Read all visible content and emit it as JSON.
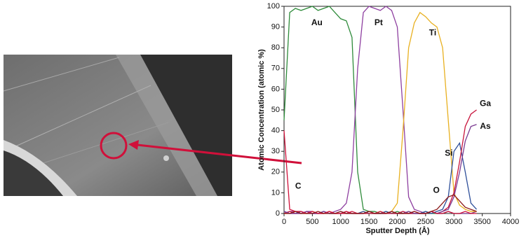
{
  "chart_data": {
    "type": "line",
    "x_label": "Sputter Depth (Å)",
    "y_label": "Atomic Concentration (atomic %)",
    "xlim": [
      0,
      4000
    ],
    "xticks": [
      0,
      500,
      1000,
      1500,
      2000,
      2500,
      3000,
      3500,
      4000
    ],
    "ylim": [
      0,
      100
    ],
    "yticks": [
      0,
      10,
      20,
      30,
      40,
      50,
      60,
      70,
      80,
      90,
      100
    ],
    "x": [
      0,
      100,
      200,
      300,
      400,
      500,
      600,
      700,
      800,
      900,
      1000,
      1100,
      1200,
      1300,
      1400,
      1500,
      1600,
      1700,
      1800,
      1900,
      2000,
      2100,
      2200,
      2300,
      2400,
      2500,
      2600,
      2700,
      2800,
      2900,
      3000,
      3100,
      3200,
      3300,
      3400
    ],
    "series": [
      {
        "name": "Au",
        "color": "#2e8b3a",
        "values": [
          45,
          97,
          99,
          98,
          99,
          100,
          98,
          99,
          100,
          97,
          94,
          93,
          85,
          20,
          2,
          1,
          1,
          0,
          1,
          0,
          1,
          0,
          1,
          0,
          0,
          1,
          0,
          0,
          0,
          1,
          0,
          0,
          0,
          0,
          1
        ]
      },
      {
        "name": "Pt",
        "color": "#8e3fa0",
        "values": [
          0,
          1,
          1,
          0,
          1,
          1,
          0,
          1,
          0,
          1,
          2,
          5,
          20,
          70,
          97,
          100,
          99,
          98,
          100,
          98,
          90,
          50,
          8,
          2,
          1,
          0,
          1,
          0,
          0,
          1,
          0,
          0,
          0,
          0,
          1
        ]
      },
      {
        "name": "Ti",
        "color": "#e8b020",
        "values": [
          0,
          0,
          1,
          0,
          0,
          1,
          0,
          0,
          1,
          0,
          0,
          1,
          0,
          0,
          1,
          0,
          0,
          1,
          0,
          1,
          5,
          40,
          80,
          92,
          97,
          95,
          92,
          90,
          80,
          45,
          10,
          4,
          2,
          1,
          1
        ]
      },
      {
        "name": "Si",
        "color": "#2e4f9a",
        "values": [
          1,
          0,
          0,
          1,
          0,
          0,
          0,
          1,
          0,
          0,
          1,
          0,
          0,
          0,
          1,
          0,
          0,
          0,
          1,
          0,
          0,
          1,
          0,
          0,
          0,
          1,
          0,
          1,
          2,
          8,
          30,
          34,
          20,
          5,
          2
        ]
      },
      {
        "name": "Ga",
        "color": "#c8143c",
        "values": [
          0,
          1,
          0,
          0,
          1,
          0,
          0,
          0,
          1,
          0,
          0,
          0,
          1,
          0,
          0,
          0,
          0,
          1,
          0,
          0,
          0,
          1,
          0,
          0,
          0,
          0,
          1,
          0,
          1,
          3,
          10,
          25,
          42,
          48,
          50
        ]
      },
      {
        "name": "As",
        "color": "#7a3a90",
        "values": [
          1,
          0,
          0,
          0,
          1,
          0,
          0,
          1,
          0,
          0,
          0,
          1,
          0,
          0,
          0,
          1,
          0,
          0,
          0,
          1,
          0,
          0,
          1,
          0,
          0,
          0,
          1,
          0,
          1,
          2,
          8,
          20,
          35,
          42,
          43
        ]
      },
      {
        "name": "C",
        "color": "#d0103a",
        "values": [
          40,
          2,
          1,
          1,
          0,
          1,
          0,
          0,
          1,
          0,
          0,
          1,
          0,
          0,
          0,
          1,
          0,
          0,
          0,
          1,
          0,
          0,
          0,
          1,
          0,
          0,
          1,
          0,
          0,
          1,
          0,
          0,
          1,
          0,
          0
        ]
      },
      {
        "name": "O",
        "color": "#8b1a1a",
        "values": [
          0,
          0,
          1,
          0,
          0,
          0,
          1,
          0,
          0,
          0,
          1,
          0,
          0,
          0,
          0,
          1,
          0,
          0,
          0,
          1,
          0,
          0,
          0,
          1,
          0,
          0,
          1,
          2,
          5,
          8,
          9,
          6,
          3,
          2,
          1
        ]
      }
    ]
  }
}
